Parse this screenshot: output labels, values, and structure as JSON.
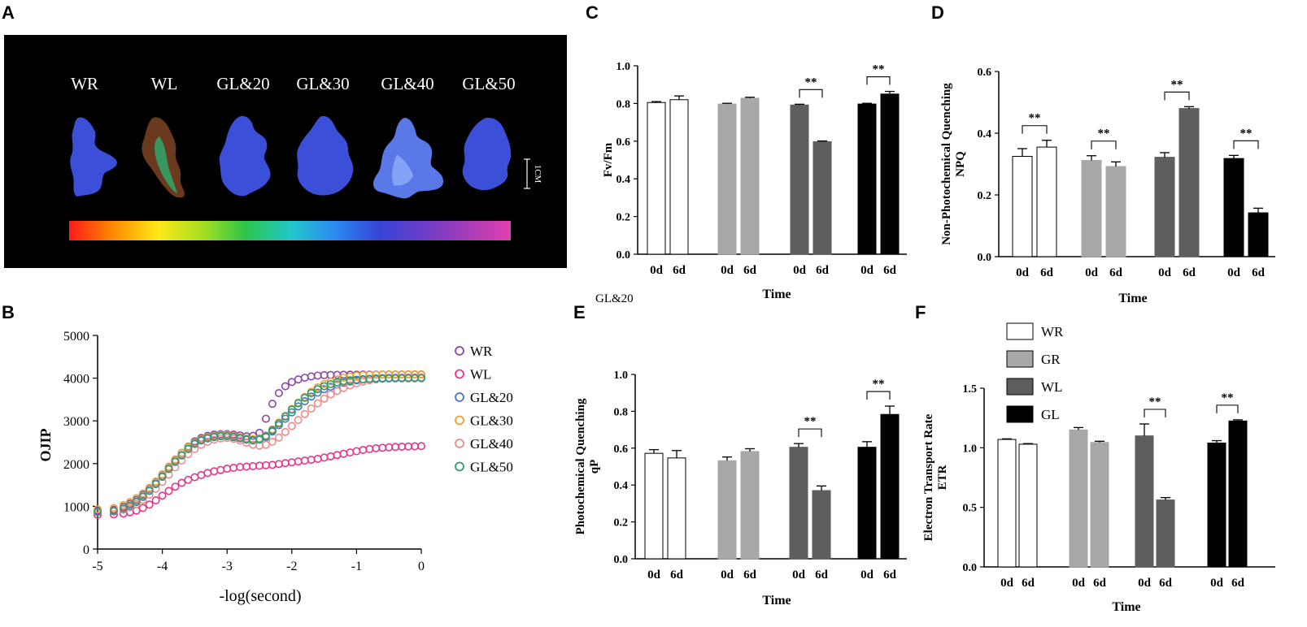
{
  "panel_letters": [
    "A",
    "B",
    "C",
    "D",
    "E",
    "F"
  ],
  "panel_a": {
    "samples": [
      "WR",
      "WL",
      "GL&20",
      "GL&30",
      "GL&40",
      "GL&50"
    ],
    "scale_label": "1CM",
    "colors": {
      "background": "#000000",
      "leaf_blue": "#3b4fd8",
      "leaf_light": "#8fb6ff",
      "leaf_green": "#2fa86a",
      "leaf_brown": "#6b3a1e"
    },
    "colorbar": [
      "#ff1a1a",
      "#ff8a00",
      "#ffe81a",
      "#a8e020",
      "#2cc44a",
      "#22c8c8",
      "#2a8cf0",
      "#3545d8",
      "#6a3cc8",
      "#a63cb8",
      "#e040b0"
    ]
  },
  "annotations": {
    "significance": "**",
    "stray_label": "GL&20"
  },
  "legend_f": {
    "items": [
      {
        "label": "WR",
        "color": "#ffffff"
      },
      {
        "label": "GR",
        "color": "#a8a8a8"
      },
      {
        "label": "WL",
        "color": "#5e5e5e"
      },
      {
        "label": "GL",
        "color": "#000000"
      }
    ]
  },
  "chart_data": [
    {
      "panel": "B",
      "type": "scatter",
      "xlabel": "-log(second)",
      "ylabel": "OJIP",
      "xlim": [
        -5,
        0
      ],
      "ylim": [
        0,
        5000
      ],
      "xticks": [
        -5,
        -4,
        -3,
        -2,
        -1,
        0
      ],
      "yticks": [
        0,
        1000,
        2000,
        3000,
        4000,
        5000
      ],
      "x": [
        -5,
        -4.75,
        -4.6,
        -4.5,
        -4.4,
        -4.3,
        -4.2,
        -4.1,
        -4.0,
        -3.9,
        -3.8,
        -3.7,
        -3.6,
        -3.5,
        -3.4,
        -3.3,
        -3.2,
        -3.1,
        -3.0,
        -2.9,
        -2.8,
        -2.7,
        -2.6,
        -2.5,
        -2.4,
        -2.3,
        -2.2,
        -2.1,
        -2.0,
        -1.9,
        -1.8,
        -1.7,
        -1.6,
        -1.5,
        -1.4,
        -1.3,
        -1.2,
        -1.1,
        -1.0,
        -0.9,
        -0.8,
        -0.7,
        -0.6,
        -0.5,
        -0.4,
        -0.3,
        -0.2,
        -0.1,
        0
      ],
      "series": [
        {
          "name": "WR",
          "color": "#8e44ad",
          "values": [
            900,
            920,
            990,
            1060,
            1150,
            1270,
            1410,
            1570,
            1740,
            1920,
            2090,
            2250,
            2400,
            2520,
            2600,
            2650,
            2680,
            2690,
            2690,
            2680,
            2660,
            2640,
            2650,
            2720,
            3050,
            3400,
            3650,
            3810,
            3910,
            3970,
            4010,
            4040,
            4060,
            4070,
            4075,
            4078,
            4080,
            4082,
            4083,
            4084,
            4085,
            4085,
            4086,
            4086,
            4086,
            4086,
            4087,
            4087,
            4087
          ]
        },
        {
          "name": "WL",
          "color": "#e8358a",
          "values": [
            800,
            810,
            830,
            860,
            900,
            960,
            1040,
            1140,
            1250,
            1360,
            1460,
            1550,
            1620,
            1680,
            1730,
            1780,
            1820,
            1850,
            1880,
            1900,
            1920,
            1930,
            1940,
            1950,
            1960,
            1970,
            1990,
            2010,
            2030,
            2050,
            2070,
            2090,
            2110,
            2140,
            2170,
            2200,
            2230,
            2260,
            2290,
            2320,
            2340,
            2360,
            2370,
            2380,
            2390,
            2395,
            2400,
            2405,
            2410
          ]
        },
        {
          "name": "GL&20",
          "color": "#4a6fd8",
          "values": [
            860,
            880,
            940,
            1010,
            1100,
            1220,
            1360,
            1520,
            1690,
            1870,
            2040,
            2190,
            2340,
            2460,
            2540,
            2590,
            2620,
            2640,
            2640,
            2620,
            2590,
            2560,
            2540,
            2560,
            2620,
            2750,
            2900,
            3050,
            3200,
            3340,
            3460,
            3570,
            3660,
            3740,
            3800,
            3850,
            3890,
            3920,
            3950,
            3970,
            3985,
            3995,
            4000,
            4005,
            4010,
            4012,
            4014,
            4015,
            4016
          ]
        },
        {
          "name": "GL&30",
          "color": "#f0a030",
          "values": [
            930,
            960,
            1030,
            1100,
            1190,
            1300,
            1430,
            1580,
            1750,
            1930,
            2100,
            2250,
            2390,
            2490,
            2570,
            2620,
            2650,
            2670,
            2670,
            2650,
            2620,
            2590,
            2570,
            2590,
            2660,
            2800,
            2960,
            3120,
            3280,
            3430,
            3560,
            3680,
            3780,
            3860,
            3920,
            3970,
            4010,
            4040,
            4060,
            4070,
            4078,
            4082,
            4085,
            4086,
            4087,
            4088,
            4088,
            4089,
            4089
          ]
        },
        {
          "name": "GL&40",
          "color": "#f08a8a",
          "values": [
            860,
            880,
            920,
            980,
            1050,
            1150,
            1270,
            1410,
            1570,
            1740,
            1910,
            2070,
            2220,
            2340,
            2440,
            2510,
            2560,
            2590,
            2600,
            2580,
            2540,
            2490,
            2440,
            2420,
            2440,
            2510,
            2610,
            2740,
            2880,
            3020,
            3160,
            3290,
            3410,
            3520,
            3620,
            3700,
            3770,
            3830,
            3880,
            3920,
            3950,
            3970,
            3985,
            3995,
            4000,
            4005,
            4008,
            4010,
            4012
          ]
        },
        {
          "name": "GL&50",
          "color": "#2e9e6e",
          "values": [
            870,
            890,
            950,
            1020,
            1110,
            1230,
            1370,
            1530,
            1700,
            1880,
            2050,
            2200,
            2350,
            2470,
            2550,
            2600,
            2630,
            2650,
            2650,
            2630,
            2600,
            2570,
            2550,
            2570,
            2640,
            2780,
            2940,
            3100,
            3260,
            3410,
            3540,
            3650,
            3740,
            3810,
            3860,
            3900,
            3930,
            3950,
            3965,
            3975,
            3982,
            3987,
            3990,
            3992,
            3994,
            3995,
            3996,
            3997,
            3998
          ]
        }
      ]
    },
    {
      "panel": "C",
      "type": "bar",
      "ylabel": "Fv/Fm",
      "xlabel": "Time",
      "ylim": [
        0,
        1.0
      ],
      "yticks": [
        "0.0",
        "0.2",
        "0.4",
        "0.6",
        "0.8",
        "1.0"
      ],
      "groups": [
        {
          "name": "WR",
          "categories": [
            "0d",
            "6d"
          ],
          "values": [
            0.805,
            0.82
          ],
          "errors": [
            0.005,
            0.02
          ]
        },
        {
          "name": "GR",
          "categories": [
            "0d",
            "6d"
          ],
          "values": [
            0.797,
            0.828
          ],
          "errors": [
            0.004,
            0.005
          ]
        },
        {
          "name": "WL",
          "categories": [
            "0d",
            "6d"
          ],
          "values": [
            0.792,
            0.597
          ],
          "errors": [
            0.004,
            0.004
          ],
          "sig": true
        },
        {
          "name": "GL",
          "categories": [
            "0d",
            "6d"
          ],
          "values": [
            0.797,
            0.85
          ],
          "errors": [
            0.004,
            0.014
          ],
          "sig": true
        }
      ]
    },
    {
      "panel": "D",
      "type": "bar",
      "ylabel": "Non-Photochemical Quenching NPQ",
      "ylabel_lines": [
        "Non-Photochemical Quenching",
        "NPQ"
      ],
      "xlabel": "Time",
      "ylim": [
        0,
        0.6
      ],
      "yticks": [
        "0.0",
        "0.2",
        "0.4",
        "0.6"
      ],
      "groups": [
        {
          "name": "WR",
          "categories": [
            "0d",
            "6d"
          ],
          "values": [
            0.325,
            0.355
          ],
          "errors": [
            0.025,
            0.022
          ],
          "sig": true
        },
        {
          "name": "GR",
          "categories": [
            "0d",
            "6d"
          ],
          "values": [
            0.312,
            0.292
          ],
          "errors": [
            0.015,
            0.015
          ],
          "sig": true
        },
        {
          "name": "WL",
          "categories": [
            "0d",
            "6d"
          ],
          "values": [
            0.322,
            0.48
          ],
          "errors": [
            0.015,
            0.006
          ],
          "sig": true
        },
        {
          "name": "GL",
          "categories": [
            "0d",
            "6d"
          ],
          "values": [
            0.318,
            0.142
          ],
          "errors": [
            0.01,
            0.015
          ],
          "sig": true
        }
      ]
    },
    {
      "panel": "E",
      "type": "bar",
      "ylabel": "Photochemical Quenching qP",
      "ylabel_lines": [
        "Photochemical Quenching",
        "qP"
      ],
      "xlabel": "Time",
      "ylim": [
        0,
        1.0
      ],
      "yticks": [
        "0.0",
        "0.2",
        "0.4",
        "0.6",
        "0.8",
        "1.0"
      ],
      "groups": [
        {
          "name": "WR",
          "categories": [
            "0d",
            "6d"
          ],
          "values": [
            0.572,
            0.547
          ],
          "errors": [
            0.02,
            0.04
          ]
        },
        {
          "name": "GR",
          "categories": [
            "0d",
            "6d"
          ],
          "values": [
            0.532,
            0.582
          ],
          "errors": [
            0.02,
            0.015
          ]
        },
        {
          "name": "WL",
          "categories": [
            "0d",
            "6d"
          ],
          "values": [
            0.605,
            0.37
          ],
          "errors": [
            0.02,
            0.025
          ],
          "sig": true
        },
        {
          "name": "GL",
          "categories": [
            "0d",
            "6d"
          ],
          "values": [
            0.605,
            0.783
          ],
          "errors": [
            0.03,
            0.045
          ],
          "sig": true
        }
      ]
    },
    {
      "panel": "F",
      "type": "bar",
      "ylabel": "Electron Transport Rate ETR",
      "ylabel_lines": [
        "Electron Transport Rate",
        "ETR"
      ],
      "xlabel": "Time",
      "ylim": [
        0,
        1.5
      ],
      "yticks": [
        "0.0",
        "0.5",
        "1.0",
        "1.5"
      ],
      "groups": [
        {
          "name": "WR",
          "categories": [
            "0d",
            "6d"
          ],
          "values": [
            1.07,
            1.03
          ],
          "errors": [
            0.005,
            0.005
          ]
        },
        {
          "name": "GR",
          "categories": [
            "0d",
            "6d"
          ],
          "values": [
            1.15,
            1.045
          ],
          "errors": [
            0.02,
            0.01
          ]
        },
        {
          "name": "WL",
          "categories": [
            "0d",
            "6d"
          ],
          "values": [
            1.1,
            0.562
          ],
          "errors": [
            0.1,
            0.02
          ],
          "sig": true
        },
        {
          "name": "GL",
          "categories": [
            "0d",
            "6d"
          ],
          "values": [
            1.04,
            1.225
          ],
          "errors": [
            0.02,
            0.01
          ],
          "sig": true
        }
      ]
    }
  ]
}
